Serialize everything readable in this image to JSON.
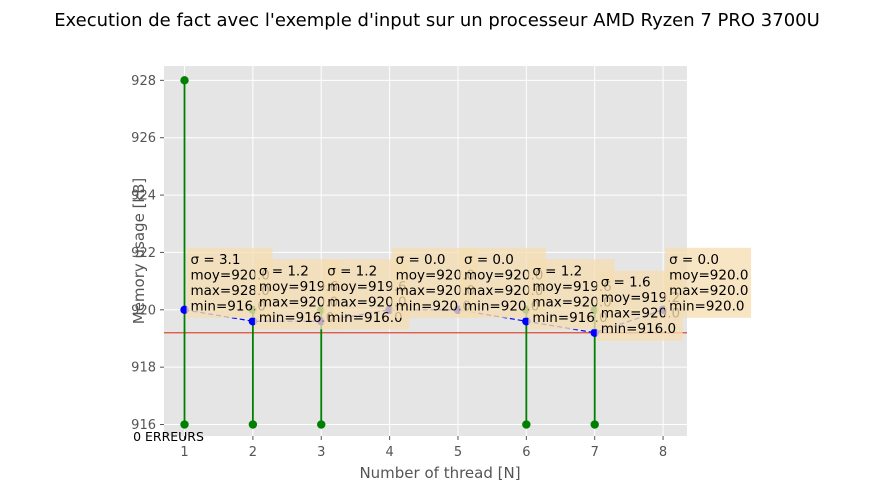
{
  "chart_data": {
    "type": "scatter",
    "title": "Execution de fact avec l'exemple d'input sur un processeur AMD Ryzen 7 PRO 3700U",
    "xlabel": "Number of thread [N]",
    "ylabel": "Memory usage [kB]",
    "xlim": [
      0.7,
      8.35
    ],
    "ylim": [
      915.6,
      928.5
    ],
    "xticks": [
      1,
      2,
      3,
      4,
      5,
      6,
      7,
      8
    ],
    "yticks": [
      916,
      918,
      920,
      922,
      924,
      926,
      928
    ],
    "grid": true,
    "legend": "none",
    "mean_line": {
      "y": 919.2,
      "color": "#e24a33"
    },
    "series": [
      {
        "kind": "mean",
        "color": "#0000ff",
        "x": [
          1,
          2,
          3,
          4,
          5,
          6,
          7,
          8
        ],
        "y": [
          920.0,
          919.6,
          919.6,
          920.0,
          920.0,
          919.6,
          919.2,
          920.0
        ]
      },
      {
        "kind": "range",
        "color": "#008000",
        "x": [
          1,
          2,
          3,
          4,
          5,
          6,
          7,
          8
        ],
        "min": [
          916.0,
          916.0,
          916.0,
          920.0,
          920.0,
          916.0,
          916.0,
          920.0
        ],
        "max": [
          928.0,
          920.0,
          920.0,
          920.0,
          920.0,
          920.0,
          920.0,
          920.0
        ]
      }
    ],
    "annotations": [
      {
        "x": 1,
        "y": 920.0,
        "lines": [
          "σ = 3.1",
          "moy=920.0",
          "max=928.0",
          "min=916.0"
        ]
      },
      {
        "x": 2,
        "y": 919.6,
        "lines": [
          "σ = 1.2",
          "moy=919.6",
          "max=920.0",
          "min=916.0"
        ]
      },
      {
        "x": 3,
        "y": 919.6,
        "lines": [
          "σ = 1.2",
          "moy=919.6",
          "max=920.0",
          "min=916.0"
        ]
      },
      {
        "x": 4,
        "y": 920.0,
        "lines": [
          "σ = 0.0",
          "moy=920.0",
          "max=920.0",
          "min=920.0"
        ]
      },
      {
        "x": 5,
        "y": 920.0,
        "lines": [
          "σ = 0.0",
          "moy=920.0",
          "max=920.0",
          "min=920.0"
        ]
      },
      {
        "x": 6,
        "y": 919.6,
        "lines": [
          "σ = 1.2",
          "moy=919.6",
          "max=920.0",
          "min=916.0"
        ]
      },
      {
        "x": 7,
        "y": 919.2,
        "lines": [
          "σ = 1.6",
          "moy=919.2",
          "max=920.0",
          "min=916.0"
        ]
      },
      {
        "x": 8,
        "y": 920.0,
        "lines": [
          "σ = 0.0",
          "moy=920.0",
          "max=920.0",
          "min=920.0"
        ]
      }
    ],
    "errors_label": {
      "x": 1,
      "text": "0 ERREURS"
    }
  }
}
